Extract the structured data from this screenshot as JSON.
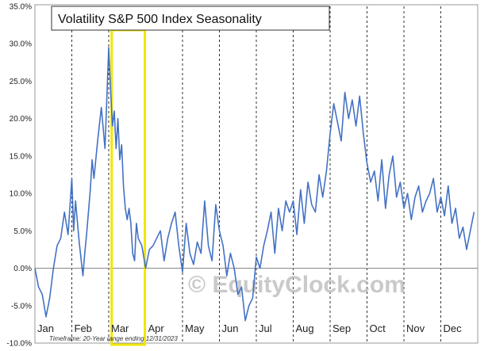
{
  "chart_data": {
    "type": "line",
    "title": "Volatility S&P 500 Index Seasonality",
    "xlabel": "",
    "ylabel": "",
    "ylim": [
      -10,
      35
    ],
    "y_ticks": [
      "35.0%",
      "30.0%",
      "25.0%",
      "20.0%",
      "15.0%",
      "10.0%",
      "5.0%",
      "0.0%",
      "-5.0%",
      "-10.0%"
    ],
    "categories": [
      "Jan",
      "Feb",
      "Mar",
      "Apr",
      "May",
      "Jun",
      "Jul",
      "Aug",
      "Sep",
      "Oct",
      "Nov",
      "Dec"
    ],
    "grid": "vertical-dashed",
    "highlight": "Mar",
    "highlight_color": "#f2e600",
    "line_color": "#4472c4",
    "footnote": "Timeframe: 20-Year range ending 12/31/2023",
    "watermark": "© EquityClock.com",
    "x": [
      0.0,
      0.1,
      0.2,
      0.3,
      0.4,
      0.5,
      0.6,
      0.7,
      0.8,
      0.9,
      1.0,
      1.05,
      1.1,
      1.2,
      1.3,
      1.35,
      1.4,
      1.5,
      1.55,
      1.6,
      1.7,
      1.8,
      1.9,
      2.0,
      2.05,
      2.1,
      2.15,
      2.2,
      2.25,
      2.3,
      2.35,
      2.4,
      2.45,
      2.5,
      2.55,
      2.6,
      2.65,
      2.7,
      2.75,
      2.8,
      2.9,
      3.0,
      3.1,
      3.2,
      3.3,
      3.4,
      3.5,
      3.6,
      3.7,
      3.8,
      3.9,
      4.0,
      4.1,
      4.2,
      4.3,
      4.4,
      4.5,
      4.6,
      4.7,
      4.8,
      4.9,
      5.0,
      5.1,
      5.2,
      5.3,
      5.4,
      5.5,
      5.6,
      5.7,
      5.8,
      5.9,
      6.0,
      6.1,
      6.2,
      6.3,
      6.4,
      6.5,
      6.6,
      6.7,
      6.8,
      6.9,
      7.0,
      7.1,
      7.2,
      7.3,
      7.4,
      7.5,
      7.6,
      7.7,
      7.8,
      7.9,
      8.0,
      8.1,
      8.2,
      8.3,
      8.4,
      8.5,
      8.6,
      8.7,
      8.8,
      8.9,
      9.0,
      9.1,
      9.2,
      9.3,
      9.4,
      9.5,
      9.6,
      9.7,
      9.8,
      9.9,
      10.0,
      10.1,
      10.2,
      10.3,
      10.4,
      10.5,
      10.6,
      10.7,
      10.8,
      10.9,
      11.0,
      11.1,
      11.2,
      11.3,
      11.4,
      11.5,
      11.6,
      11.7,
      11.8,
      11.9
    ],
    "values": [
      0.0,
      -2.5,
      -3.5,
      -6.5,
      -4.0,
      0.0,
      3.0,
      4.0,
      7.5,
      4.5,
      12.0,
      5.0,
      9.0,
      3.5,
      -1.0,
      2.0,
      4.5,
      10.5,
      14.5,
      12.0,
      17.0,
      21.5,
      16.0,
      29.5,
      24.0,
      19.0,
      21.0,
      16.0,
      20.0,
      14.5,
      16.5,
      11.0,
      8.0,
      6.5,
      8.0,
      6.0,
      2.0,
      1.0,
      6.0,
      4.0,
      3.0,
      0.0,
      2.5,
      3.0,
      4.0,
      5.0,
      1.0,
      4.0,
      6.0,
      7.5,
      3.0,
      -0.5,
      6.0,
      2.0,
      0.5,
      3.5,
      2.0,
      9.0,
      3.0,
      1.0,
      8.5,
      5.0,
      3.0,
      -1.0,
      2.0,
      0.0,
      -3.5,
      -2.5,
      -7.0,
      -5.0,
      -4.0,
      1.5,
      0.0,
      3.0,
      5.0,
      7.5,
      2.0,
      8.0,
      5.0,
      9.0,
      7.5,
      9.0,
      4.5,
      10.5,
      6.0,
      11.5,
      8.5,
      7.5,
      12.5,
      9.5,
      13.0,
      18.0,
      22.0,
      19.5,
      17.0,
      23.5,
      20.0,
      22.5,
      19.0,
      23.0,
      18.0,
      14.0,
      11.5,
      13.0,
      9.0,
      14.5,
      8.0,
      12.5,
      15.0,
      9.5,
      11.5,
      8.0,
      10.0,
      6.5,
      9.5,
      11.0,
      7.5,
      9.0,
      10.0,
      12.0,
      7.5,
      9.5,
      7.0,
      11.0,
      6.0,
      8.0,
      4.0,
      5.5,
      2.5,
      5.0,
      7.5
    ]
  }
}
